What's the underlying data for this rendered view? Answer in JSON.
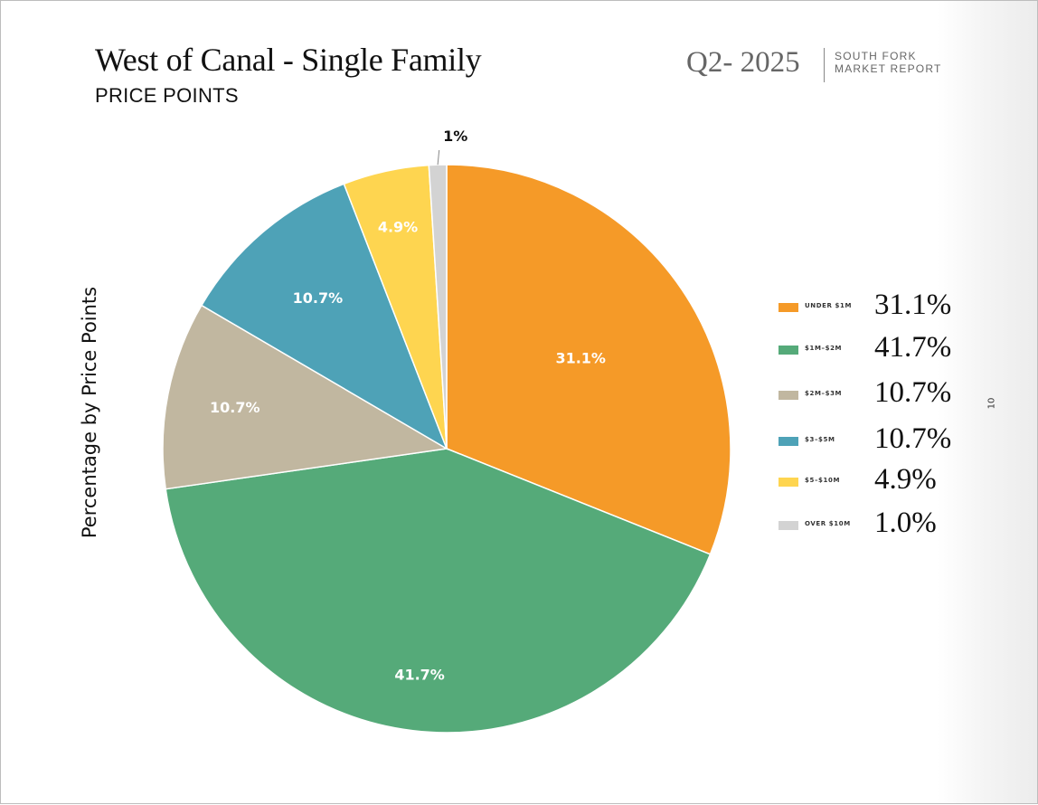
{
  "header": {
    "title": "West of Canal - Single Family",
    "subtitle": "PRICE POINTS",
    "quarter": "Q2- 2025",
    "report_line1": "SOUTH FORK",
    "report_line2": "MARKET REPORT"
  },
  "page_number": "10",
  "chart_data": {
    "type": "pie",
    "title": "West of Canal - Single Family",
    "subtitle": "PRICE POINTS",
    "ylabel": "Percentage by Price Points",
    "slices": [
      {
        "label": "UNDER $1M",
        "value": 31.1,
        "slice_label": "31.1%",
        "legend_value": "31.1%",
        "color": "#f59a28"
      },
      {
        "label": "$1M–$2M",
        "value": 41.7,
        "slice_label": "41.7%",
        "legend_value": "41.7%",
        "color": "#55aa79"
      },
      {
        "label": "$2M–$3M",
        "value": 10.7,
        "slice_label": "10.7%",
        "legend_value": "10.7%",
        "color": "#c1b7a0"
      },
      {
        "label": "$3–$5M",
        "value": 10.7,
        "slice_label": "10.7%",
        "legend_value": "10.7%",
        "color": "#4ea2b7"
      },
      {
        "label": "$5–$10M",
        "value": 4.9,
        "slice_label": "4.9%",
        "legend_value": "4.9%",
        "color": "#fed550"
      },
      {
        "label": "OVER $10M",
        "value": 1.0,
        "slice_label": "1%",
        "legend_value": "1.0%",
        "color": "#d3d3d3"
      }
    ],
    "legend_position": "right"
  }
}
